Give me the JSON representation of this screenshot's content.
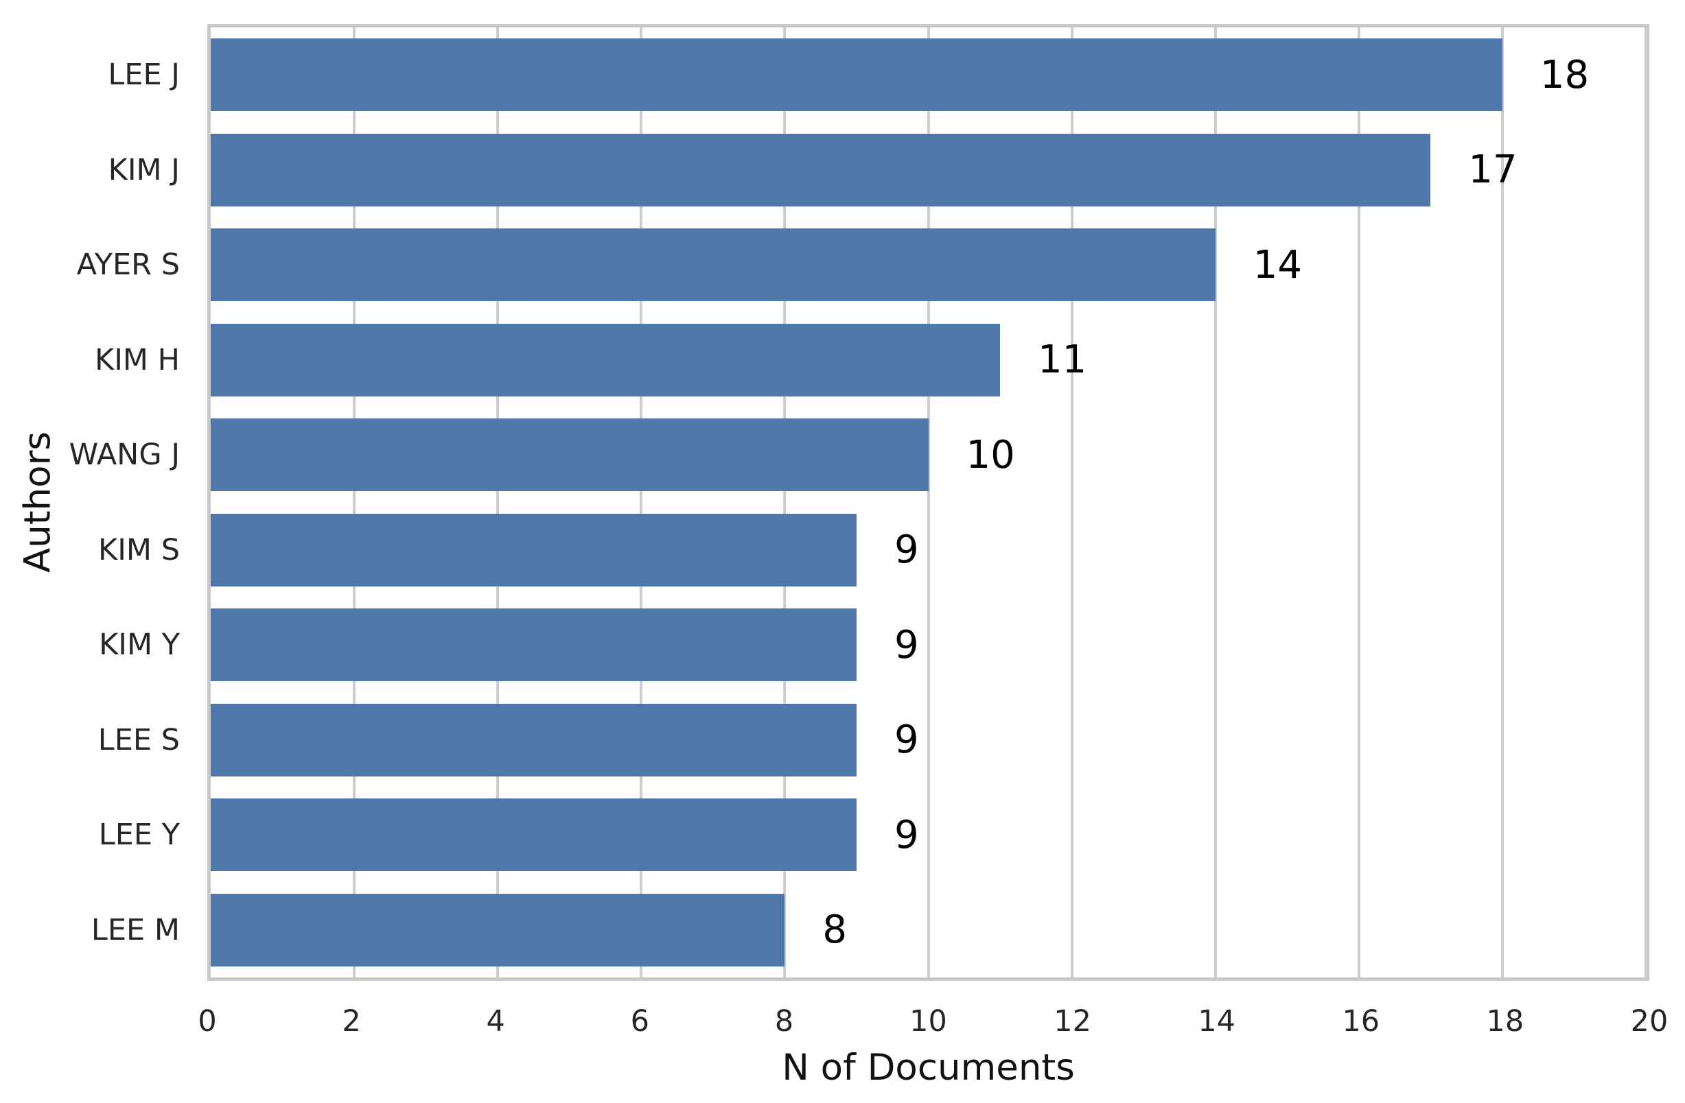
{
  "chart_data": {
    "type": "bar",
    "orientation": "horizontal",
    "title": "",
    "xlabel": "N of Documents",
    "ylabel": "Authors",
    "categories": [
      "LEE J",
      "KIM J",
      "AYER S",
      "KIM H",
      "WANG J",
      "KIM S",
      "KIM Y",
      "LEE S",
      "LEE Y",
      "LEE M"
    ],
    "values": [
      18,
      17,
      14,
      11,
      10,
      9,
      9,
      9,
      9,
      8
    ],
    "xlim": [
      0,
      20
    ],
    "xticks": [
      0,
      2,
      4,
      6,
      8,
      10,
      12,
      14,
      16,
      18,
      20
    ],
    "grid": "vertical-gridlines-on",
    "legend": "none",
    "bar_value_labels_shown": true
  },
  "colors": {
    "bar": "#5077aa",
    "grid": "#cccccc",
    "border": "#c8c8c8",
    "tick_text": "#262626",
    "value_text": "#000000",
    "label_text": "#111111",
    "background": "#ffffff"
  }
}
